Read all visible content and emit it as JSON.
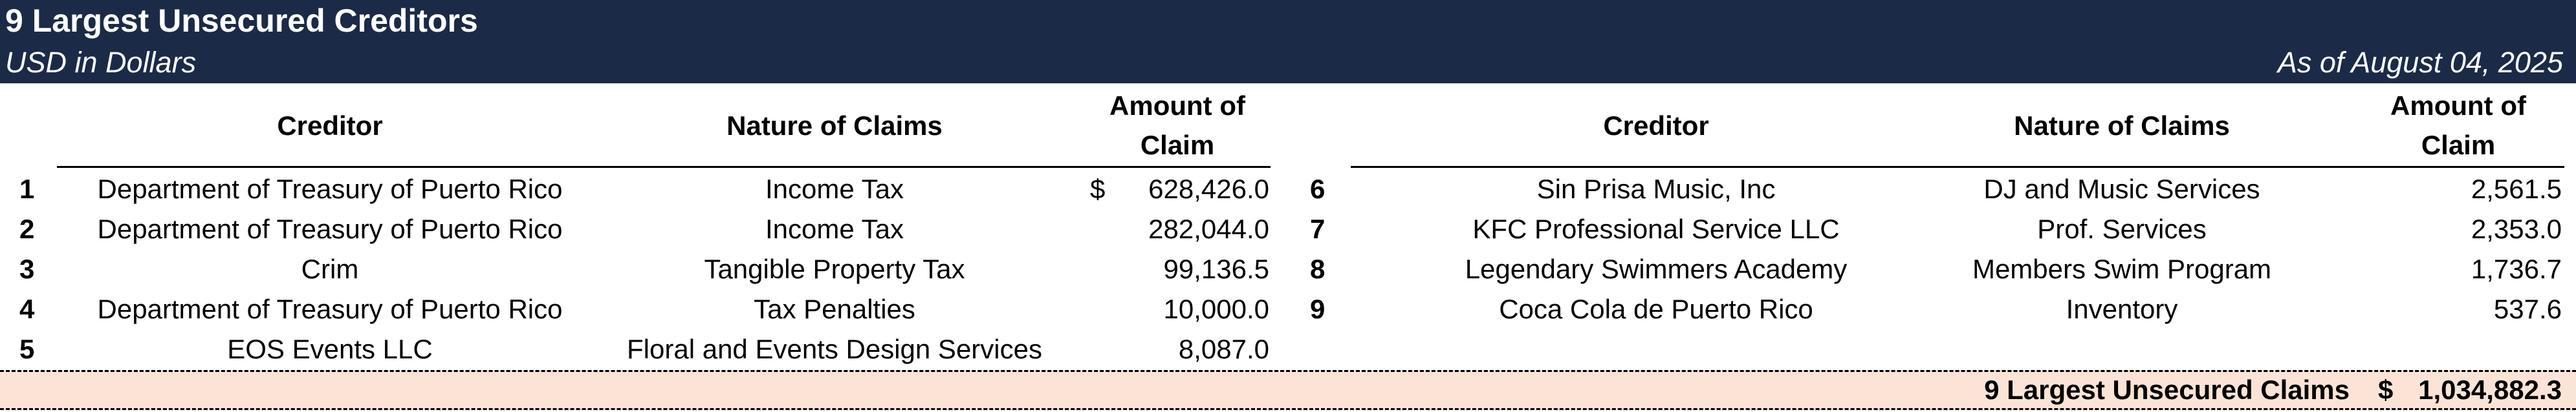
{
  "header": {
    "title": "9 Largest Unsecured Creditors",
    "currency_note": "USD in Dollars",
    "as_of": "As of August 04, 2025"
  },
  "columns": {
    "creditor": "Creditor",
    "nature": "Nature of Claims",
    "amount_line1": "Amount of",
    "amount_line2": "Claim"
  },
  "left_rows": [
    {
      "num": "1",
      "creditor": "Department of Treasury of Puerto Rico",
      "nature": "Income Tax",
      "currency": "$",
      "amount": "628,426.0"
    },
    {
      "num": "2",
      "creditor": "Department of Treasury of Puerto Rico",
      "nature": "Income Tax",
      "currency": "",
      "amount": "282,044.0"
    },
    {
      "num": "3",
      "creditor": "Crim",
      "nature": "Tangible Property Tax",
      "currency": "",
      "amount": "99,136.5"
    },
    {
      "num": "4",
      "creditor": "Department of Treasury of Puerto Rico",
      "nature": "Tax Penalties",
      "currency": "",
      "amount": "10,000.0"
    },
    {
      "num": "5",
      "creditor": "EOS Events LLC",
      "nature": "Floral and Events Design Services",
      "currency": "",
      "amount": "8,087.0"
    }
  ],
  "right_rows": [
    {
      "num": "6",
      "creditor": "Sin Prisa Music, Inc",
      "nature": "DJ and Music Services",
      "amount": "2,561.5"
    },
    {
      "num": "7",
      "creditor": "KFC Professional Service LLC",
      "nature": "Prof. Services",
      "amount": "2,353.0"
    },
    {
      "num": "8",
      "creditor": "Legendary Swimmers Academy",
      "nature": "Members Swim Program",
      "amount": "1,736.7"
    },
    {
      "num": "9",
      "creditor": "Coca Cola de Puerto Rico",
      "nature": "Inventory",
      "amount": "537.6"
    }
  ],
  "total": {
    "label": "9 Largest Unsecured Claims",
    "currency": "$",
    "amount": "1,034,882.3"
  }
}
